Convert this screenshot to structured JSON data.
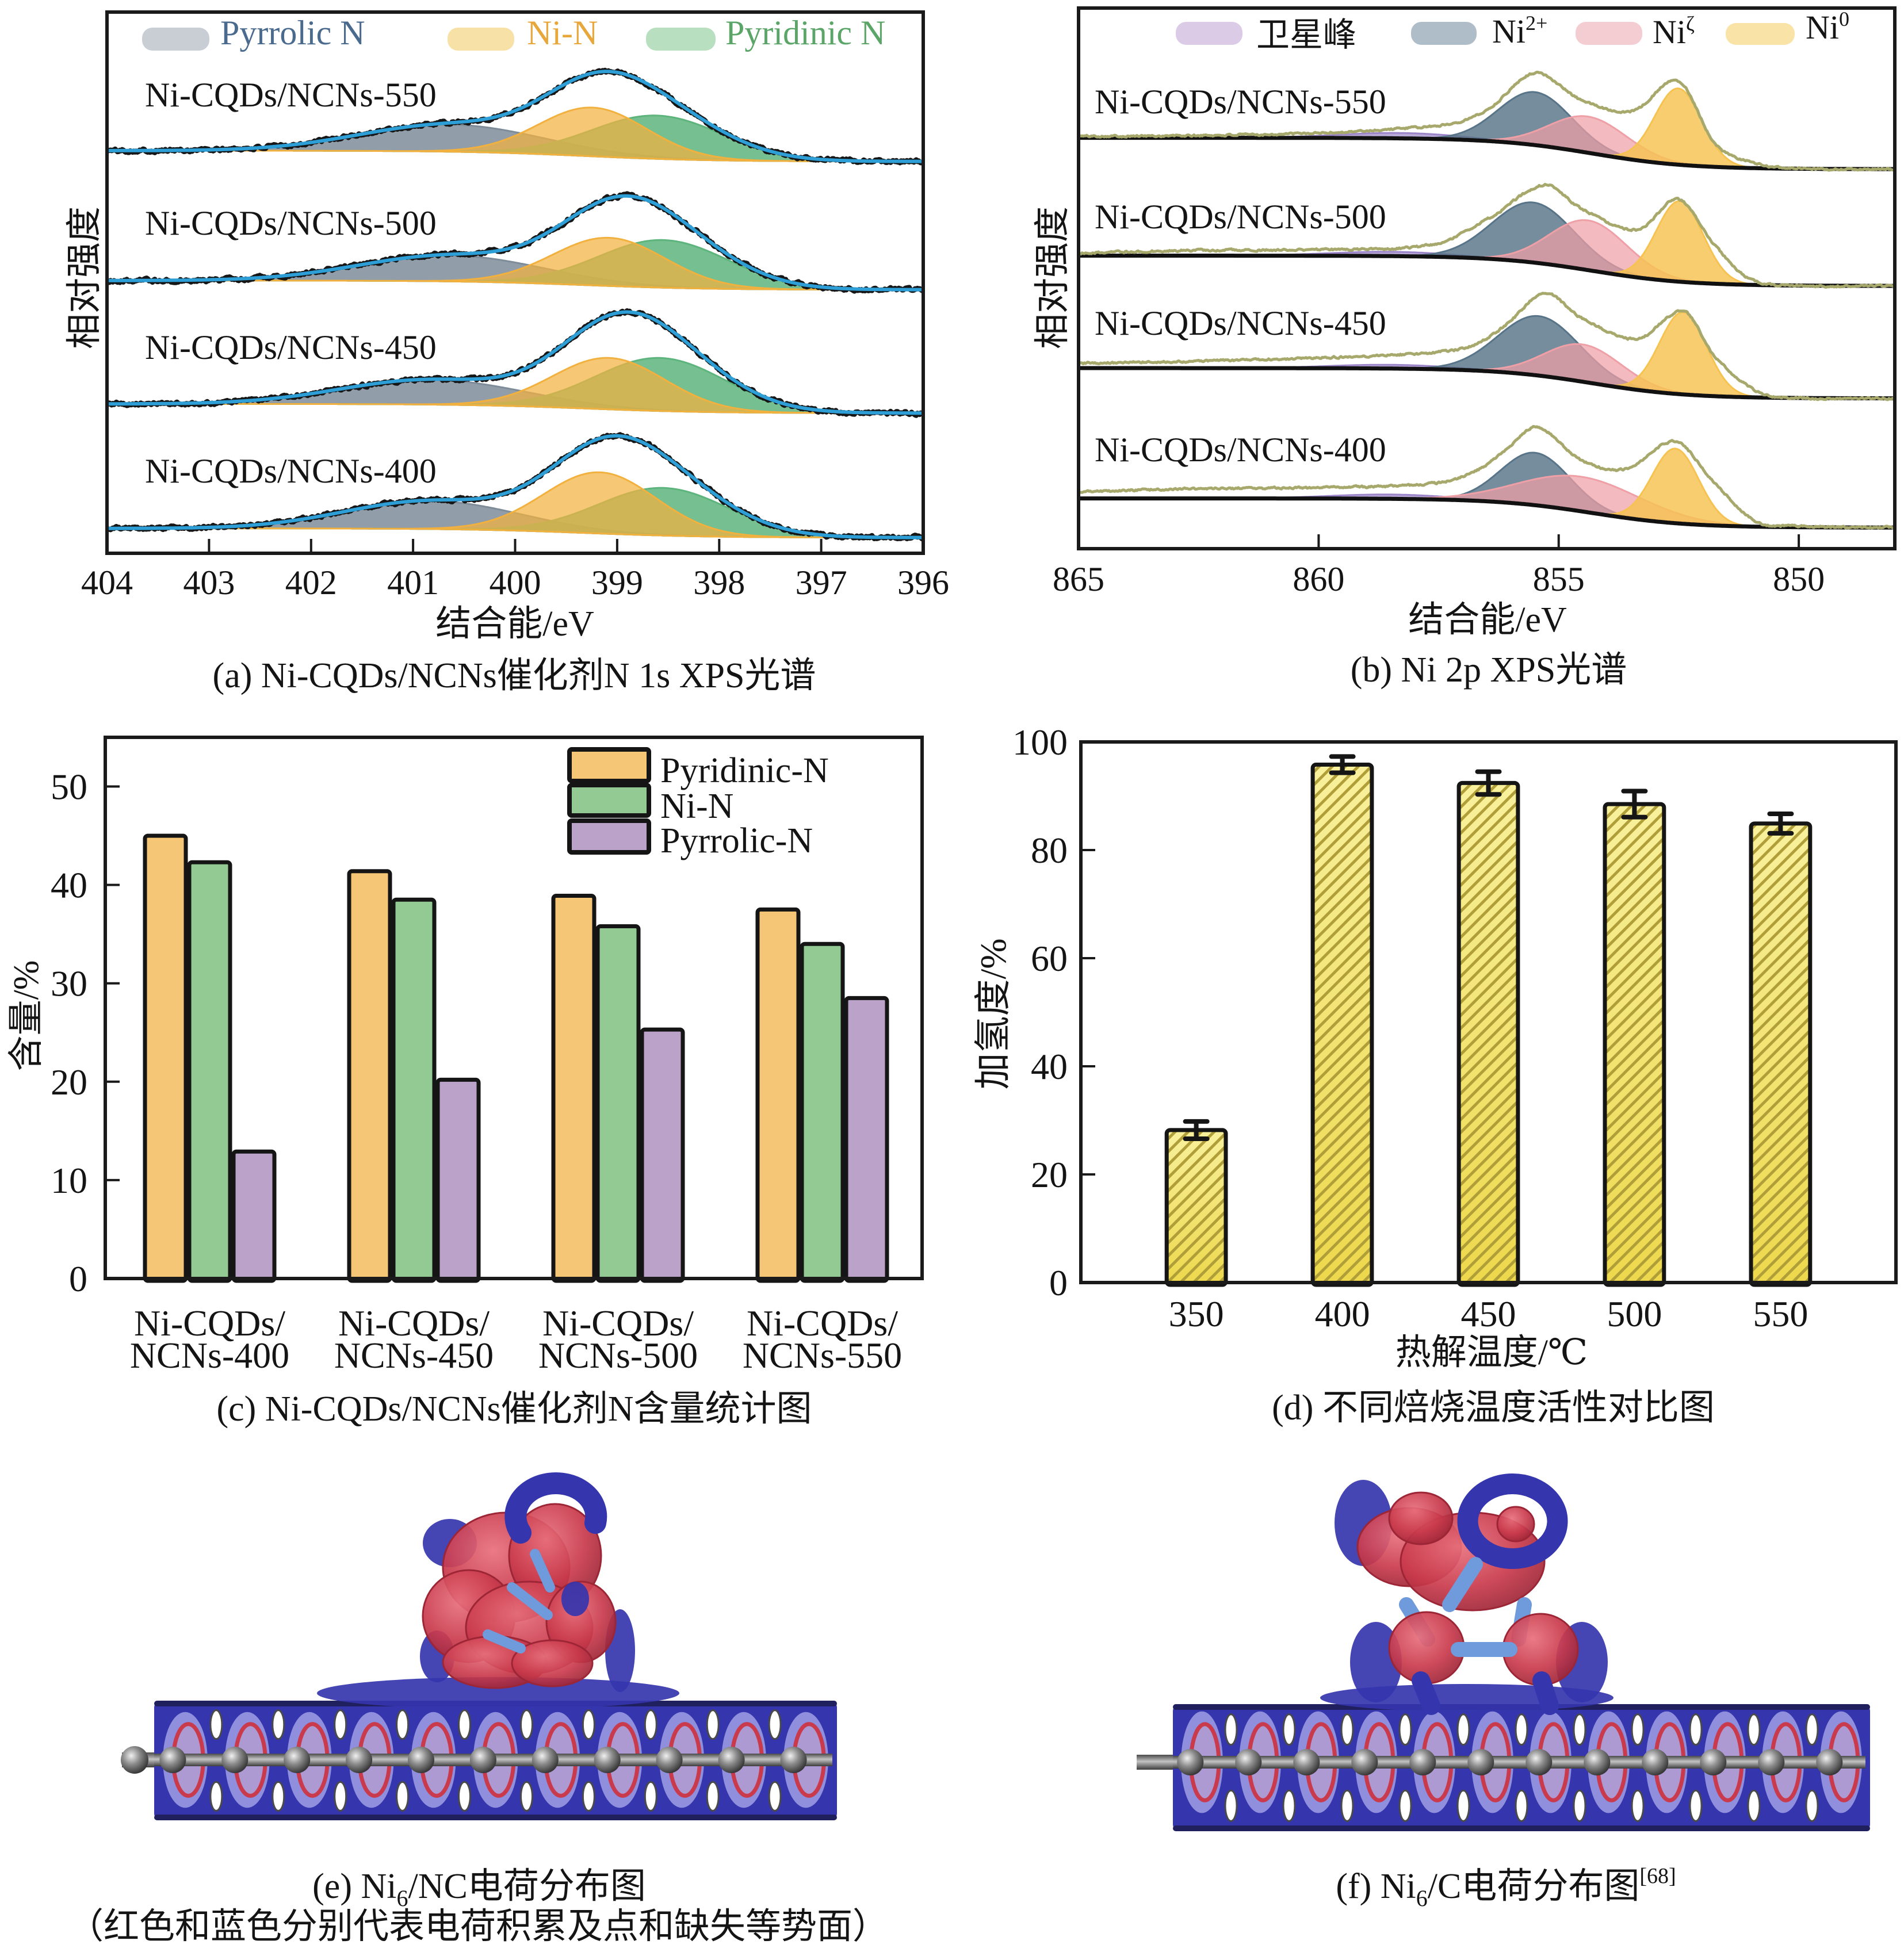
{
  "chart_data": [
    {
      "type": "area",
      "title": "(a) Ni-CQDs/NCNs催化剂N 1s XPS光谱",
      "xlabel": "结合能/eV",
      "ylabel": "相对强度",
      "xlim": [
        404,
        396
      ],
      "ylim": [
        0,
        100
      ],
      "y_units": "a.u. (stacked spectra, no y ticks)",
      "xticks": [
        404,
        403,
        402,
        401,
        400,
        399,
        398,
        397,
        396
      ],
      "grid": false,
      "legend_position": "top",
      "legend": [
        {
          "name": "Pyrrolic N",
          "color": "#C9CED4",
          "text_color": "#4A6A8E"
        },
        {
          "name": "Ni-N",
          "color": "#F8E1A6",
          "text_color": "#E8A73A"
        },
        {
          "name": "Pyridinic N",
          "color": "#B9DFC1",
          "text_color": "#5BA568"
        }
      ],
      "component_colors": {
        "Pyrrolic N": "#7E8C99",
        "Ni-N": "#F2B13E",
        "Pyridinic N": "#5DB47C"
      },
      "fit_color": "#2E9FD6",
      "data_color": "#161616",
      "samples": [
        {
          "label": "Ni-CQDs/NCNs-550",
          "background": {
            "left": 74.4,
            "right": 72.4,
            "mid": 399.3,
            "width": 0.6
          },
          "components": [
            {
              "name": "Pyrrolic N",
              "center": 400.63,
              "height": 5.0,
              "fwhm": 2.1
            },
            {
              "name": "Ni-N",
              "center": 399.24,
              "height": 9.0,
              "fwhm": 1.25
            },
            {
              "name": "Pyridinic N",
              "center": 398.61,
              "height": 8.0,
              "fwhm": 1.5
            }
          ]
        },
        {
          "label": "Ni-CQDs/NCNs-500",
          "background": {
            "left": 50.4,
            "right": 48.7,
            "mid": 399.3,
            "width": 0.6
          },
          "components": [
            {
              "name": "Pyrrolic N",
              "center": 400.63,
              "height": 4.8,
              "fwhm": 2.1
            },
            {
              "name": "Ni-N",
              "center": 399.08,
              "height": 8.9,
              "fwhm": 1.3
            },
            {
              "name": "Pyridinic N",
              "center": 398.55,
              "height": 8.8,
              "fwhm": 1.5
            }
          ]
        },
        {
          "label": "Ni-CQDs/NCNs-450",
          "background": {
            "left": 27.6,
            "right": 25.9,
            "mid": 399.3,
            "width": 0.6
          },
          "components": [
            {
              "name": "Pyrrolic N",
              "center": 400.82,
              "height": 4.6,
              "fwhm": 2.1
            },
            {
              "name": "Ni-N",
              "center": 399.08,
              "height": 9.5,
              "fwhm": 1.3
            },
            {
              "name": "Pyridinic N",
              "center": 398.58,
              "height": 9.8,
              "fwhm": 1.5
            }
          ]
        },
        {
          "label": "Ni-CQDs/NCNs-400",
          "background": {
            "left": 4.6,
            "right": 2.9,
            "mid": 399.3,
            "width": 0.6
          },
          "components": [
            {
              "name": "Pyrrolic N",
              "center": 400.82,
              "height": 5.2,
              "fwhm": 2.0
            },
            {
              "name": "Ni-N",
              "center": 399.17,
              "height": 11.3,
              "fwhm": 1.3
            },
            {
              "name": "Pyridinic N",
              "center": 398.55,
              "height": 8.8,
              "fwhm": 1.5
            }
          ]
        }
      ]
    },
    {
      "type": "area",
      "title": "(b) Ni 2p XPS光谱",
      "xlabel": "结合能/eV",
      "ylabel": "相对强度",
      "xlim": [
        865,
        848
      ],
      "ylim": [
        0,
        100
      ],
      "y_units": "a.u. (stacked spectra, no y ticks)",
      "xticks": [
        865,
        860,
        855,
        850
      ],
      "grid": false,
      "legend_position": "top",
      "legend": [
        {
          "name": "卫星峰",
          "sup": "",
          "color": "#DCCBE6"
        },
        {
          "name": "Ni",
          "sup": "2+",
          "color": "#AEBDC8"
        },
        {
          "name": "Ni",
          "sup": "ζ",
          "color": "#F3CDD2"
        },
        {
          "name": "Ni",
          "sup": "0",
          "color": "#F9E3A6"
        }
      ],
      "component_colors": {
        "satellite": "#9B85C8",
        "Ni2+": "#587488",
        "Niζ": "#EEA0A6",
        "Ni0": "#F6C250"
      },
      "raw_color": "#A7A86C",
      "background_color": "#111111",
      "samples": [
        {
          "label": "Ni-CQDs/NCNs-550",
          "background": {
            "left": 76.0,
            "right": 70.2,
            "mid": 854.3,
            "width": 1.0
          },
          "components": [
            {
              "name": "satellite",
              "center": 858.3,
              "height": 1.0,
              "fwhm": 3.0
            },
            {
              "name": "Ni2+",
              "center": 855.49,
              "height": 9.8,
              "fwhm": 1.8
            },
            {
              "name": "Niζ",
              "center": 854.38,
              "height": 6.7,
              "fwhm": 1.9
            },
            {
              "name": "Ni0",
              "center": 852.51,
              "height": 14.1,
              "fwhm": 1.15
            }
          ],
          "raw": [
            [
              865,
              76.3
            ],
            [
              862.6,
              76.4
            ],
            [
              859.9,
              76.9
            ],
            [
              858.5,
              77.6
            ],
            [
              857.2,
              78.7
            ],
            [
              856.45,
              81.4
            ],
            [
              855.5,
              88.0
            ],
            [
              854.53,
              83.0
            ],
            [
              853.45,
              81.0
            ],
            [
              852.5,
              86.5
            ],
            [
              851.75,
              75.0
            ],
            [
              851.0,
              71.5
            ],
            [
              850,
              70.3
            ],
            [
              848,
              70.2
            ]
          ]
        },
        {
          "label": "Ni-CQDs/NCNs-500",
          "background": {
            "left": 54.2,
            "right": 48.6,
            "mid": 854.3,
            "width": 1.0
          },
          "components": [
            {
              "name": "satellite",
              "center": 858.5,
              "height": 0.8,
              "fwhm": 3.0
            },
            {
              "name": "Ni2+",
              "center": 855.53,
              "height": 11.1,
              "fwhm": 2.0
            },
            {
              "name": "Niζ",
              "center": 854.38,
              "height": 9.2,
              "fwhm": 1.9
            },
            {
              "name": "Ni0",
              "center": 852.48,
              "height": 14.9,
              "fwhm": 1.15
            }
          ],
          "raw": [
            [
              865,
              54.7
            ],
            [
              862.5,
              55.2
            ],
            [
              860,
              55.3
            ],
            [
              857.6,
              56.3
            ],
            [
              856.45,
              61.1
            ],
            [
              855.3,
              67.3
            ],
            [
              854.53,
              62.9
            ],
            [
              853.37,
              59.0
            ],
            [
              852.5,
              64.6
            ],
            [
              851.75,
              56.1
            ],
            [
              851.0,
              49.8
            ],
            [
              850,
              48.7
            ],
            [
              848,
              48.6
            ]
          ]
        },
        {
          "label": "Ni-CQDs/NCNs-450",
          "background": {
            "left": 33.4,
            "right": 27.8,
            "mid": 854.3,
            "width": 1.0
          },
          "components": [
            {
              "name": "satellite",
              "center": 858.5,
              "height": 0.7,
              "fwhm": 3.0
            },
            {
              "name": "Ni2+",
              "center": 855.41,
              "height": 11.0,
              "fwhm": 2.0
            },
            {
              "name": "Niζ",
              "center": 854.49,
              "height": 6.9,
              "fwhm": 1.9
            },
            {
              "name": "Ni0",
              "center": 852.41,
              "height": 15.2,
              "fwhm": 1.15
            }
          ],
          "raw": [
            [
              865,
              34.3
            ],
            [
              862.5,
              34.7
            ],
            [
              860,
              35.3
            ],
            [
              857.6,
              36.3
            ],
            [
              856.76,
              37.7
            ],
            [
              856.07,
              41.6
            ],
            [
              855.3,
              47.3
            ],
            [
              854.53,
              42.7
            ],
            [
              853.37,
              38.8
            ],
            [
              852.39,
              43.9
            ],
            [
              851.75,
              35.6
            ],
            [
              850.83,
              28.9
            ],
            [
              850,
              27.9
            ],
            [
              848,
              27.8
            ]
          ]
        },
        {
          "label": "Ni-CQDs/NCNs-400",
          "background": {
            "left": 9.3,
            "right": 3.9,
            "mid": 854.3,
            "width": 1.0
          },
          "components": [
            {
              "name": "satellite",
              "center": 858.5,
              "height": 0.8,
              "fwhm": 3.0
            },
            {
              "name": "Ni2+",
              "center": 855.49,
              "height": 9.7,
              "fwhm": 1.7
            },
            {
              "name": "Niζ",
              "center": 854.53,
              "height": 6.4,
              "fwhm": 3.0
            },
            {
              "name": "Ni0",
              "center": 852.57,
              "height": 13.8,
              "fwhm": 1.15
            }
          ],
          "raw": [
            [
              865,
              10.5
            ],
            [
              862.5,
              11.1
            ],
            [
              860,
              11.3
            ],
            [
              857.6,
              12.1
            ],
            [
              856.76,
              14.2
            ],
            [
              856.07,
              18.5
            ],
            [
              855.45,
              22.5
            ],
            [
              854.53,
              16.4
            ],
            [
              853.6,
              14.7
            ],
            [
              852.57,
              19.8
            ],
            [
              851.75,
              12.1
            ],
            [
              850.9,
              5.1
            ],
            [
              850,
              4.2
            ],
            [
              848,
              3.9
            ]
          ]
        }
      ]
    },
    {
      "type": "bar",
      "title": "(c) Ni-CQDs/NCNs催化剂N含量统计图",
      "xlabel": "",
      "ylabel": "含量/%",
      "categories": [
        [
          "Ni-CQDs/",
          "NCNs-400"
        ],
        [
          "Ni-CQDs/",
          "NCNs-450"
        ],
        [
          "Ni-CQDs/",
          "NCNs-500"
        ],
        [
          "Ni-CQDs/",
          "NCNs-550"
        ]
      ],
      "series": [
        {
          "name": "Pyridinic-N",
          "color": "#F6C677",
          "values": [
            45.0,
            41.4,
            38.9,
            37.5
          ]
        },
        {
          "name": "Ni-N",
          "color": "#93CA93",
          "values": [
            42.3,
            38.5,
            35.8,
            34.0
          ]
        },
        {
          "name": "Pyrrolic-N",
          "color": "#BBA2C8",
          "values": [
            12.9,
            20.2,
            25.3,
            28.5
          ]
        }
      ],
      "ylim": [
        0,
        55
      ],
      "yticks": [
        0,
        10,
        20,
        30,
        40,
        50
      ],
      "grid": false,
      "legend_position": "top-right"
    },
    {
      "type": "bar",
      "title": "(d) 不同焙烧温度活性对比图",
      "xlabel": "热解温度/℃",
      "ylabel": "加氢度/%",
      "categories": [
        "350",
        "400",
        "450",
        "500",
        "550"
      ],
      "values": [
        28.2,
        95.8,
        92.4,
        88.5,
        84.9
      ],
      "errors": [
        1.6,
        1.5,
        2.1,
        2.4,
        1.8
      ],
      "ylim": [
        0,
        100
      ],
      "yticks": [
        0,
        20,
        40,
        60,
        80,
        100
      ],
      "grid": false,
      "bar_color": "#EDD84C",
      "hatch_color": "#B09E38",
      "hatch": "diagonal"
    }
  ],
  "images": [
    {
      "caption": {
        "prefix": "(e) Ni",
        "sub": "6",
        "suffix": "/NC电荷分布图"
      },
      "note": "（红色和蓝色分别代表电荷积累及点和缺失等势面）",
      "colors": {
        "charge_accumulation": "#C93A4C",
        "charge_depletion": "#3535AE"
      }
    },
    {
      "caption": {
        "prefix": "(f) Ni",
        "sub": "6",
        "suffix": "/C电荷分布图",
        "sup": "[68]"
      },
      "colors": {
        "charge_accumulation": "#C93A4C",
        "charge_depletion": "#3535AE"
      }
    }
  ]
}
